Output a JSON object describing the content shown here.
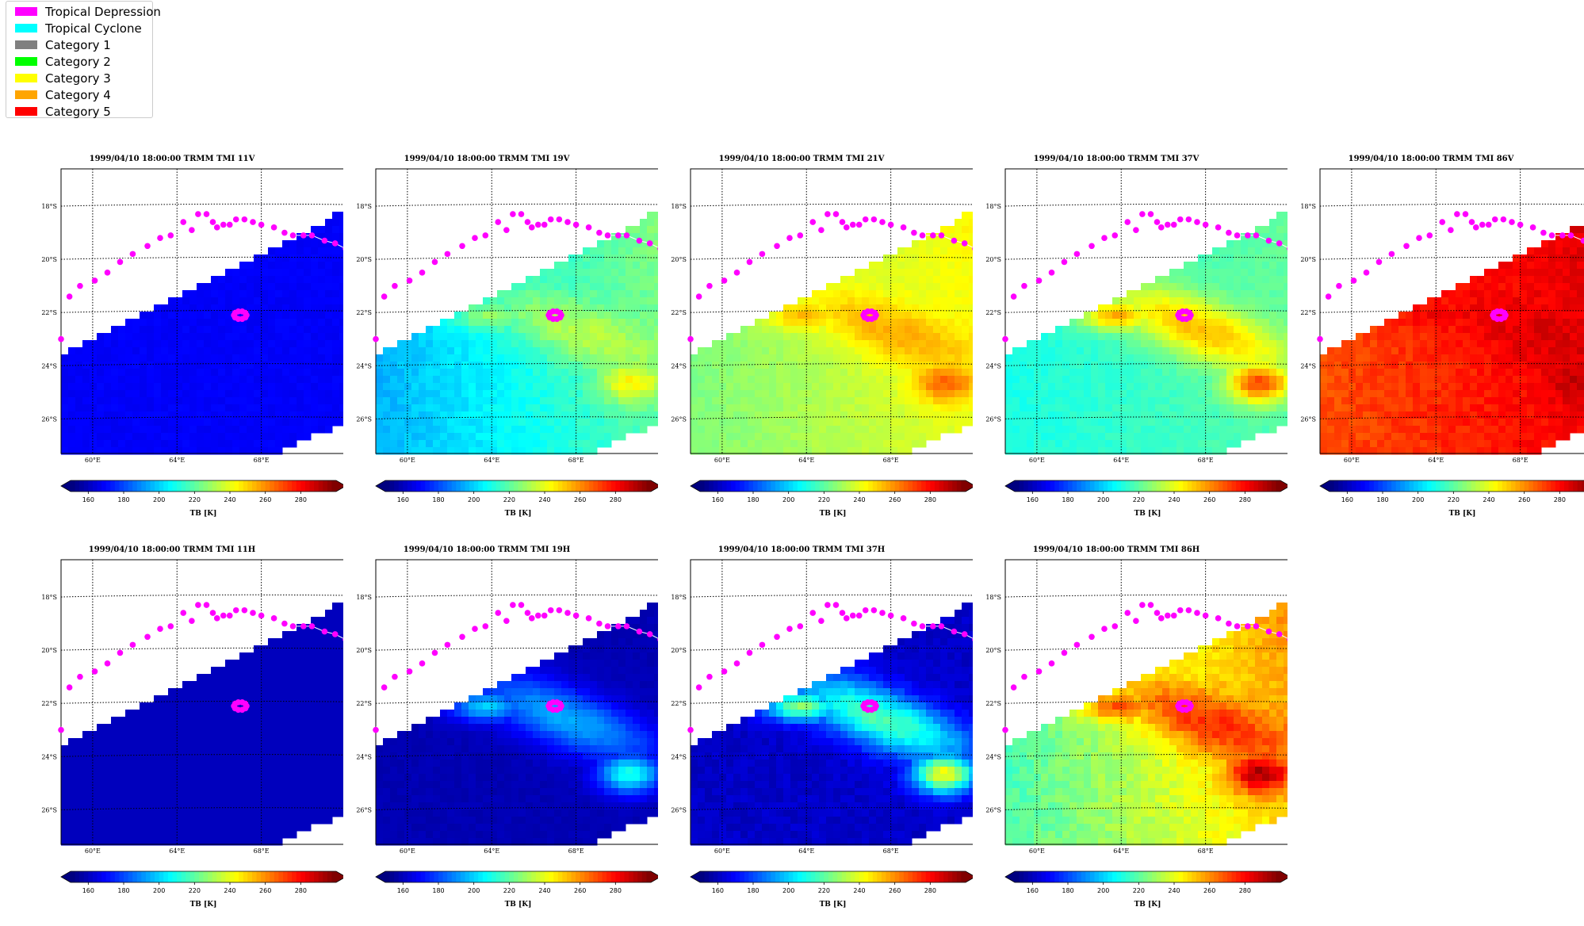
{
  "legend": {
    "items": [
      {
        "label": "Tropical Depression",
        "color": "#ff00ff"
      },
      {
        "label": "Tropical Cyclone",
        "color": "#00ffff"
      },
      {
        "label": "Category 1",
        "color": "#808080"
      },
      {
        "label": "Category 2",
        "color": "#00ff00"
      },
      {
        "label": "Category 3",
        "color": "#ffff00"
      },
      {
        "label": "Category 4",
        "color": "#ffa500"
      },
      {
        "label": "Category 5",
        "color": "#ff0000"
      }
    ]
  },
  "chart_data": [
    {
      "type": "heatmap",
      "title": "1999/04/10 18:00:00  TRMM TMI 11V",
      "colorbar_label": "TB [K]",
      "field": "uniform_blue"
    },
    {
      "type": "heatmap",
      "title": "1999/04/10 18:00:00  TRMM TMI 19V",
      "colorbar_label": "TB [K]",
      "field": "gradient_cyan"
    },
    {
      "type": "heatmap",
      "title": "1999/04/10 18:00:00  TRMM TMI 21V",
      "colorbar_label": "TB [K]",
      "field": "gradient_green"
    },
    {
      "type": "heatmap",
      "title": "1999/04/10 18:00:00  TRMM TMI 37V",
      "colorbar_label": "TB [K]",
      "field": "gradient_cyan2"
    },
    {
      "type": "heatmap",
      "title": "1999/04/10 18:00:00  TRMM TMI 86V",
      "colorbar_label": "TB [K]",
      "field": "gradient_red"
    },
    {
      "type": "heatmap",
      "title": "1999/04/10 18:00:00  TRMM TMI 11H",
      "colorbar_label": "TB [K]",
      "field": "uniform_navy"
    },
    {
      "type": "heatmap",
      "title": "1999/04/10 18:00:00  TRMM TMI 19H",
      "colorbar_label": "TB [K]",
      "field": "navy_bands"
    },
    {
      "type": "heatmap",
      "title": "1999/04/10 18:00:00  TRMM TMI 37H",
      "colorbar_label": "TB [K]",
      "field": "navy_bands2"
    },
    {
      "type": "heatmap",
      "title": "1999/04/10 18:00:00  TRMM TMI 86H",
      "colorbar_label": "TB [K]",
      "field": "mixed"
    }
  ],
  "map": {
    "lat_ticks": [
      "18°S",
      "20°S",
      "22°S",
      "24°S",
      "26°S"
    ],
    "lon_ticks": [
      "60°E",
      "64°E",
      "68°E"
    ]
  },
  "colorbar": {
    "ticks": [
      "160",
      "180",
      "200",
      "220",
      "240",
      "260",
      "280"
    ],
    "range": [
      150,
      300
    ]
  },
  "track": {
    "color": "#ff00ff",
    "category": "Tropical Depression",
    "points": [
      [
        58.5,
        -23.0
      ],
      [
        58.9,
        -21.4
      ],
      [
        59.4,
        -21.0
      ],
      [
        60.1,
        -20.8
      ],
      [
        60.7,
        -20.5
      ],
      [
        61.3,
        -20.1
      ],
      [
        61.9,
        -19.8
      ],
      [
        62.6,
        -19.5
      ],
      [
        63.2,
        -19.2
      ],
      [
        63.7,
        -19.1
      ],
      [
        64.3,
        -18.6
      ],
      [
        64.7,
        -18.9
      ],
      [
        65.0,
        -18.3
      ],
      [
        65.4,
        -18.3
      ],
      [
        65.7,
        -18.6
      ],
      [
        65.9,
        -18.8
      ],
      [
        66.2,
        -18.7
      ],
      [
        66.5,
        -18.7
      ],
      [
        66.8,
        -18.5
      ],
      [
        67.2,
        -18.5
      ],
      [
        67.6,
        -18.6
      ],
      [
        68.0,
        -18.7
      ],
      [
        68.6,
        -18.8
      ],
      [
        69.1,
        -19.0
      ],
      [
        69.5,
        -19.1
      ],
      [
        70.0,
        -19.1
      ],
      [
        70.4,
        -19.1
      ],
      [
        71.0,
        -19.3
      ],
      [
        71.5,
        -19.4
      ],
      [
        72.0,
        -19.6
      ]
    ]
  }
}
